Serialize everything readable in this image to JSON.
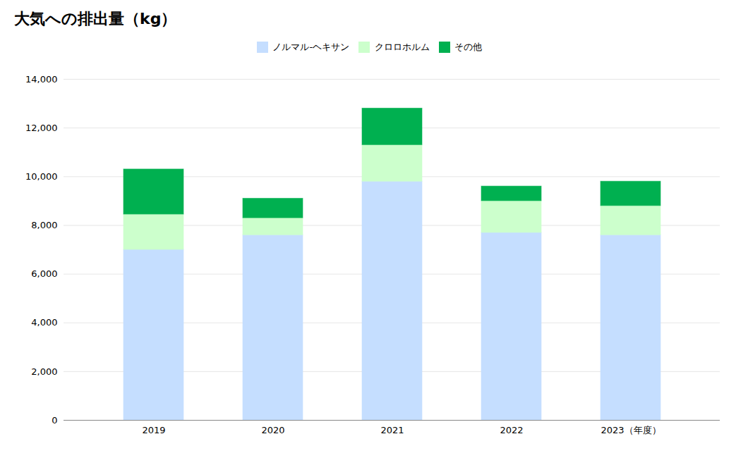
{
  "chart_data": {
    "type": "bar",
    "title": "大気への排出量（kg）",
    "categories": [
      "2019",
      "2020",
      "2021",
      "2022",
      "2023（年度）"
    ],
    "series": [
      {
        "name": "ノルマル-ヘキサン",
        "color": "#C5DEFF",
        "values": [
          7000,
          7600,
          9800,
          7700,
          7600
        ]
      },
      {
        "name": "クロロホルム",
        "color": "#CCFFCC",
        "values": [
          1450,
          700,
          1500,
          1300,
          1200
        ]
      },
      {
        "name": "その他",
        "color": "#00B050",
        "values": [
          1850,
          800,
          1500,
          600,
          1000
        ]
      }
    ],
    "stacked": true,
    "ylim": [
      0,
      14000
    ],
    "yticks": [
      0,
      {
        "value": 2000,
        "label": "2,000"
      },
      {
        "value": 4000,
        "label": "4,000"
      },
      {
        "value": 6000,
        "label": "6,000"
      },
      {
        "value": 8000,
        "label": "8,000"
      },
      {
        "value": 10000,
        "label": "10,000"
      },
      {
        "value": 12000,
        "label": "12,000"
      },
      {
        "value": 14000,
        "label": "14,000"
      }
    ],
    "grid": true,
    "legend": "top"
  }
}
